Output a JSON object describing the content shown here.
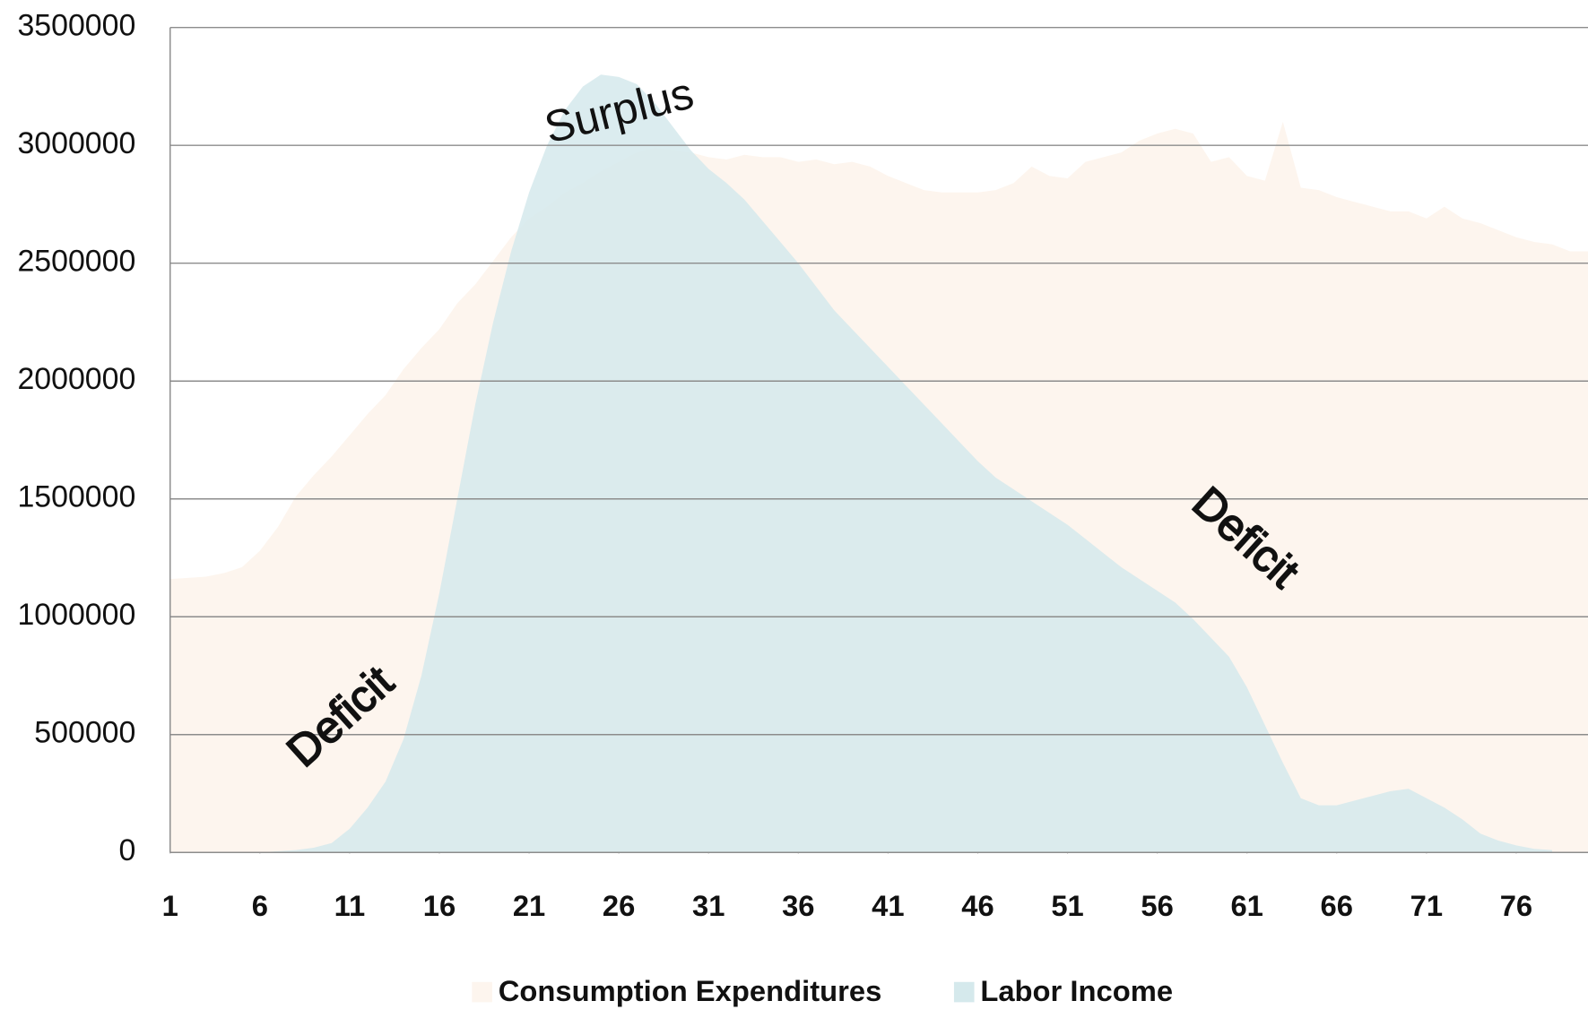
{
  "chart_data": {
    "type": "area",
    "x": [
      1,
      2,
      3,
      4,
      5,
      6,
      7,
      8,
      9,
      10,
      11,
      12,
      13,
      14,
      15,
      16,
      17,
      18,
      19,
      20,
      21,
      22,
      23,
      24,
      25,
      26,
      27,
      28,
      29,
      30,
      31,
      32,
      33,
      34,
      35,
      36,
      37,
      38,
      39,
      40,
      41,
      42,
      43,
      44,
      45,
      46,
      47,
      48,
      49,
      50,
      51,
      52,
      53,
      54,
      55,
      56,
      57,
      58,
      59,
      60,
      61,
      62,
      63,
      64,
      65,
      66,
      67,
      68,
      69,
      70,
      71,
      72,
      73,
      74,
      75,
      76,
      77,
      78,
      79,
      80
    ],
    "series": [
      {
        "name": "Consumption Expenditures",
        "color": "#fdf5ee",
        "values": [
          1160000,
          1165000,
          1170000,
          1185000,
          1210000,
          1280000,
          1380000,
          1510000,
          1600000,
          1680000,
          1770000,
          1860000,
          1940000,
          2050000,
          2140000,
          2220000,
          2330000,
          2410000,
          2510000,
          2610000,
          2690000,
          2740000,
          2800000,
          2840000,
          2890000,
          2930000,
          2970000,
          2990000,
          2980000,
          2970000,
          2950000,
          2940000,
          2960000,
          2950000,
          2950000,
          2930000,
          2940000,
          2920000,
          2930000,
          2910000,
          2870000,
          2840000,
          2810000,
          2800000,
          2800000,
          2800000,
          2810000,
          2840000,
          2910000,
          2870000,
          2860000,
          2930000,
          2950000,
          2970000,
          3020000,
          3050000,
          3070000,
          3050000,
          2930000,
          2950000,
          2870000,
          2850000,
          3100000,
          2820000,
          2810000,
          2780000,
          2760000,
          2740000,
          2720000,
          2720000,
          2690000,
          2740000,
          2690000,
          2670000,
          2640000,
          2610000,
          2590000,
          2580000,
          2550000,
          2550000
        ]
      },
      {
        "name": "Labor Income",
        "color": "#d5e9ec",
        "values": [
          0,
          0,
          0,
          0,
          0,
          0,
          5000,
          10000,
          20000,
          40000,
          100000,
          190000,
          300000,
          480000,
          750000,
          1100000,
          1500000,
          1900000,
          2250000,
          2550000,
          2800000,
          3000000,
          3150000,
          3250000,
          3300000,
          3290000,
          3260000,
          3180000,
          3080000,
          2980000,
          2900000,
          2840000,
          2770000,
          2680000,
          2590000,
          2500000,
          2400000,
          2300000,
          2220000,
          2140000,
          2060000,
          1980000,
          1900000,
          1820000,
          1740000,
          1660000,
          1590000,
          1540000,
          1490000,
          1440000,
          1390000,
          1330000,
          1270000,
          1210000,
          1160000,
          1110000,
          1060000,
          990000,
          910000,
          830000,
          700000,
          540000,
          380000,
          230000,
          200000,
          200000,
          220000,
          240000,
          260000,
          270000,
          230000,
          190000,
          140000,
          80000,
          50000,
          30000,
          15000,
          10000,
          null,
          null
        ]
      }
    ],
    "xlim": [
      1,
      80
    ],
    "xticks": [
      1,
      6,
      11,
      16,
      21,
      26,
      31,
      36,
      41,
      46,
      51,
      56,
      61,
      66,
      71,
      76
    ],
    "ylim": [
      0,
      3500000
    ],
    "yticks": [
      0,
      500000,
      1000000,
      1500000,
      2000000,
      2500000,
      3000000,
      3500000
    ],
    "grid": true,
    "annotations": [
      "Surplus",
      "Deficit",
      "Deficit"
    ]
  }
}
